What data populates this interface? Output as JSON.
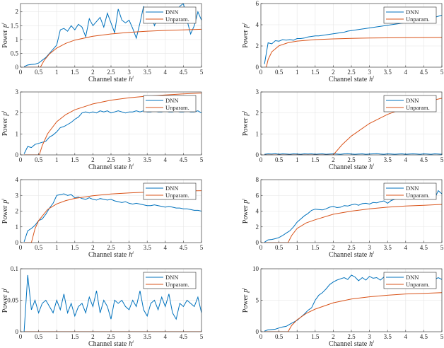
{
  "colors": {
    "dnn": "#0072BD",
    "unparam": "#D95319",
    "grid": "#E6E6E6",
    "axis": "#262626"
  },
  "chart_data": [
    {
      "type": "line",
      "xlabel": "Channel state",
      "xlabel_sup": "i",
      "xlabel_var": "h",
      "ylabel": "Power",
      "ylabel_var": "p",
      "ylabel_sup": "i",
      "xlim": [
        0,
        5
      ],
      "ylim": [
        0,
        2.3
      ],
      "xticks": [
        "0",
        "0.5",
        "1",
        "1.5",
        "2",
        "2.5",
        "3",
        "3.5",
        "4",
        "4.5",
        "5"
      ],
      "yticks": [
        "0",
        "0.5",
        "1",
        "1.5",
        "2"
      ],
      "legend": "top-right",
      "series": [
        {
          "name": "DNN",
          "x_start": 0.1,
          "x_step": 0.1,
          "values": [
            0.02,
            0.08,
            0.1,
            0.11,
            0.15,
            0.25,
            0.35,
            0.5,
            0.65,
            0.8,
            1.35,
            1.4,
            1.3,
            1.5,
            1.35,
            1.55,
            1.45,
            1.1,
            1.75,
            1.5,
            1.65,
            1.8,
            1.45,
            1.95,
            1.6,
            1.25,
            2.1,
            1.7,
            1.6,
            1.7,
            1.4,
            1.05,
            1.6,
            2.2,
            1.7,
            2.0,
            1.5,
            1.8,
            2.1,
            1.6,
            1.9,
            2.0,
            1.6,
            2.2,
            2.3,
            1.7,
            1.2,
            1.5,
            2.0,
            1.7
          ]
        },
        {
          "name": "Unparam.",
          "x": [
            0.1,
            0.55,
            0.65,
            0.8,
            1,
            1.25,
            1.5,
            2,
            2.5,
            3,
            3.5,
            4,
            4.5,
            5
          ],
          "values": [
            0,
            0,
            0.24,
            0.48,
            0.69,
            0.86,
            0.98,
            1.12,
            1.2,
            1.26,
            1.3,
            1.33,
            1.35,
            1.37
          ]
        }
      ]
    },
    {
      "type": "line",
      "xlabel": "Channel state",
      "xlabel_sup": "i",
      "xlabel_var": "h",
      "ylabel": "Power",
      "ylabel_var": "p",
      "ylabel_sup": "i",
      "xlim": [
        0,
        5
      ],
      "ylim": [
        0,
        6
      ],
      "xticks": [
        "0",
        "0.5",
        "1",
        "1.5",
        "2",
        "2.5",
        "3",
        "3.5",
        "4",
        "4.5",
        "5"
      ],
      "yticks": [
        "0",
        "2",
        "4",
        "6"
      ],
      "legend": "top-right",
      "series": [
        {
          "name": "DNN",
          "x_start": 0.1,
          "x_step": 0.1,
          "values": [
            0.3,
            2.3,
            2.2,
            2.5,
            2.45,
            2.6,
            2.55,
            2.6,
            2.55,
            2.7,
            2.7,
            2.75,
            2.85,
            2.9,
            2.95,
            2.95,
            3.0,
            3.05,
            3.1,
            3.15,
            3.2,
            3.25,
            3.3,
            3.4,
            3.45,
            3.5,
            3.55,
            3.6,
            3.65,
            3.7,
            3.75,
            3.8,
            3.85,
            3.9,
            3.95,
            4.0,
            4.05,
            4.1,
            4.15,
            4.2,
            4.25,
            4.3,
            4.35,
            4.45,
            4.5,
            4.55,
            4.65,
            4.7,
            4.8,
            4.9
          ]
        },
        {
          "name": "Unparam.",
          "x": [
            0.1,
            0.15,
            0.2,
            0.3,
            0.5,
            0.75,
            1,
            1.5,
            2,
            2.5,
            3,
            3.5,
            4,
            4.5,
            5
          ],
          "values": [
            0,
            0,
            0.72,
            1.45,
            2.02,
            2.31,
            2.46,
            2.6,
            2.67,
            2.72,
            2.75,
            2.77,
            2.78,
            2.79,
            2.8
          ]
        }
      ]
    },
    {
      "type": "line",
      "xlabel": "Channel state",
      "xlabel_sup": "i",
      "xlabel_var": "h",
      "ylabel": "Power",
      "ylabel_var": "p",
      "ylabel_sup": "i",
      "xlim": [
        0,
        5
      ],
      "ylim": [
        0,
        3
      ],
      "xticks": [
        "0",
        "0.5",
        "1",
        "1.5",
        "2",
        "2.5",
        "3",
        "3.5",
        "4",
        "4.5",
        "5"
      ],
      "yticks": [
        "0",
        "1",
        "2",
        "3"
      ],
      "legend": "top-right",
      "series": [
        {
          "name": "DNN",
          "x_start": 0.1,
          "x_step": 0.1,
          "values": [
            0.05,
            0.4,
            0.35,
            0.5,
            0.55,
            0.6,
            0.65,
            0.85,
            0.95,
            1.1,
            1.3,
            1.35,
            1.45,
            1.55,
            1.7,
            1.8,
            2.0,
            2.05,
            2.0,
            2.05,
            2.0,
            2.1,
            2.05,
            2.1,
            2.0,
            2.05,
            2.1,
            2.05,
            2.0,
            2.05,
            2.05,
            2.1,
            2.05,
            2.1,
            2.05,
            2.05,
            2.1,
            2.05,
            2.05,
            2.1,
            2.05,
            2.05,
            2.1,
            2.05,
            2.05,
            2.1,
            2.05,
            2.05,
            2.1,
            2.0
          ]
        },
        {
          "name": "Unparam.",
          "x": [
            0.1,
            0.52,
            0.6,
            0.75,
            1,
            1.25,
            1.5,
            2,
            2.5,
            3,
            3.5,
            4,
            4.5,
            5
          ],
          "values": [
            0,
            0,
            0.44,
            1.01,
            1.58,
            1.92,
            2.15,
            2.43,
            2.61,
            2.72,
            2.8,
            2.86,
            2.91,
            2.95
          ]
        }
      ]
    },
    {
      "type": "line",
      "xlabel": "Channel state",
      "xlabel_sup": "i",
      "xlabel_var": "h",
      "ylabel": "Power",
      "ylabel_var": "p",
      "ylabel_sup": "i",
      "xlim": [
        0,
        5
      ],
      "ylim": [
        0,
        3
      ],
      "xticks": [
        "0",
        "0.5",
        "1",
        "1.5",
        "2",
        "2.5",
        "3",
        "3.5",
        "4",
        "4.5",
        "5"
      ],
      "yticks": [
        "0",
        "1",
        "2",
        "3"
      ],
      "legend": "top-right",
      "series": [
        {
          "name": "DNN",
          "x_start": 0.1,
          "x_step": 0.1,
          "values": [
            0.03,
            0.05,
            0.04,
            0.06,
            0.03,
            0.05,
            0.04,
            0.03,
            0.05,
            0.04,
            0.03,
            0.05,
            0.04,
            0.05,
            0.03,
            0.04,
            0.05,
            0.03,
            0.04,
            0.05,
            0.04,
            0.03,
            0.05,
            0.06,
            0.04,
            0.03,
            0.04,
            0.05,
            0.03,
            0.04,
            0.05,
            0.06,
            0.04,
            0.03,
            0.05,
            0.04,
            0.03,
            0.04,
            0.05,
            0.03,
            0.04,
            0.05,
            0.04,
            0.03,
            0.05,
            0.04,
            0.03,
            0.05,
            0.04,
            0.03
          ]
        },
        {
          "name": "Unparam.",
          "x": [
            0.1,
            2,
            2.25,
            2.5,
            3,
            3.5,
            4,
            4.5,
            5
          ],
          "values": [
            0,
            0,
            0.5,
            0.9,
            1.5,
            1.93,
            2.25,
            2.5,
            2.7
          ]
        }
      ]
    },
    {
      "type": "line",
      "xlabel": "Channel state",
      "xlabel_sup": "i",
      "xlabel_var": "h",
      "ylabel": "Power",
      "ylabel_var": "p",
      "ylabel_sup": "i",
      "xlim": [
        0,
        5
      ],
      "ylim": [
        0,
        4
      ],
      "xticks": [
        "0",
        "0.5",
        "1",
        "1.5",
        "2",
        "2.5",
        "3",
        "3.5",
        "4",
        "4.5",
        "5"
      ],
      "yticks": [
        "0",
        "1",
        "2",
        "3",
        "4"
      ],
      "legend": "top-right",
      "series": [
        {
          "name": "DNN",
          "x_start": 0.1,
          "x_step": 0.1,
          "values": [
            0.05,
            0.75,
            0.9,
            1.1,
            1.4,
            1.5,
            1.8,
            2.2,
            2.5,
            3.0,
            3.05,
            3.1,
            3.0,
            3.05,
            2.85,
            2.9,
            2.8,
            2.75,
            2.85,
            2.75,
            2.7,
            2.8,
            2.75,
            2.7,
            2.75,
            2.65,
            2.6,
            2.55,
            2.6,
            2.5,
            2.45,
            2.5,
            2.45,
            2.4,
            2.35,
            2.35,
            2.4,
            2.35,
            2.3,
            2.25,
            2.3,
            2.25,
            2.2,
            2.2,
            2.15,
            2.15,
            2.1,
            2.05,
            2.05,
            2.0
          ]
        },
        {
          "name": "Unparam.",
          "x": [
            0.1,
            0.3,
            0.4,
            0.5,
            0.75,
            1,
            1.25,
            1.5,
            2,
            2.5,
            3,
            3.5,
            4,
            4.5,
            5
          ],
          "values": [
            0,
            0,
            0.88,
            1.4,
            2.11,
            2.46,
            2.67,
            2.81,
            2.98,
            3.09,
            3.16,
            3.21,
            3.25,
            3.28,
            3.3
          ]
        }
      ]
    },
    {
      "type": "line",
      "xlabel": "Channel state",
      "xlabel_sup": "i",
      "xlabel_var": "h",
      "ylabel": "Power",
      "ylabel_var": "p",
      "ylabel_sup": "i",
      "xlim": [
        0,
        5
      ],
      "ylim": [
        0,
        8
      ],
      "xticks": [
        "0",
        "0.5",
        "1",
        "1.5",
        "2",
        "2.5",
        "3",
        "3.5",
        "4",
        "4.5",
        "5"
      ],
      "yticks": [
        "0",
        "2",
        "4",
        "6",
        "8"
      ],
      "legend": "top-right",
      "series": [
        {
          "name": "DNN",
          "x_start": 0.1,
          "x_step": 0.1,
          "values": [
            0.05,
            0.35,
            0.4,
            0.5,
            0.65,
            0.9,
            1.2,
            1.5,
            2.0,
            2.6,
            3.0,
            3.4,
            3.7,
            4.1,
            4.25,
            4.2,
            4.15,
            4.3,
            4.5,
            4.6,
            4.45,
            4.5,
            4.7,
            4.65,
            4.8,
            4.9,
            4.75,
            4.95,
            5.0,
            4.9,
            5.1,
            5.05,
            5.2,
            5.3,
            5.0,
            5.35,
            5.5,
            5.6,
            5.5,
            5.7,
            5.8,
            5.6,
            5.9,
            5.75,
            5.9,
            6.0,
            5.7,
            5.6,
            6.6,
            6.2
          ]
        },
        {
          "name": "Unparam.",
          "x": [
            0.1,
            0.75,
            0.85,
            1,
            1.25,
            1.5,
            2,
            2.5,
            3,
            3.5,
            4,
            4.5,
            5
          ],
          "values": [
            0,
            0,
            0.9,
            1.8,
            2.5,
            2.9,
            3.6,
            4.0,
            4.3,
            4.5,
            4.65,
            4.75,
            4.85
          ]
        }
      ]
    },
    {
      "type": "line",
      "xlabel": "Channel state",
      "xlabel_sup": "i",
      "xlabel_var": "h",
      "ylabel": "Power",
      "ylabel_var": "p",
      "ylabel_sup": "i",
      "xlim": [
        0,
        5
      ],
      "ylim": [
        0,
        0.1
      ],
      "xticks": [
        "0",
        "0.5",
        "1",
        "1.5",
        "2",
        "2.5",
        "3",
        "3.5",
        "4",
        "4.5",
        "5"
      ],
      "yticks": [
        "0",
        "0.05",
        "0.1"
      ],
      "legend": "top-right",
      "series": [
        {
          "name": "DNN",
          "x_start": 0.1,
          "x_step": 0.1,
          "values": [
            0,
            0.09,
            0.035,
            0.05,
            0.03,
            0.045,
            0.05,
            0.04,
            0.03,
            0.05,
            0.035,
            0.06,
            0.03,
            0.045,
            0.025,
            0.04,
            0.045,
            0.03,
            0.055,
            0.04,
            0.065,
            0.03,
            0.05,
            0.04,
            0.02,
            0.05,
            0.045,
            0.05,
            0.04,
            0.035,
            0.05,
            0.04,
            0.065,
            0.035,
            0.025,
            0.045,
            0.05,
            0.035,
            0.055,
            0.04,
            0.06,
            0.03,
            0.02,
            0.045,
            0.04,
            0.05,
            0.045,
            0.04,
            0.055,
            0.03
          ]
        },
        {
          "name": "Unparam.",
          "x": [
            0.1,
            5
          ],
          "values": [
            0,
            0
          ]
        }
      ]
    },
    {
      "type": "line",
      "xlabel": "Channel state",
      "xlabel_sup": "i",
      "xlabel_var": "h",
      "ylabel": "Power",
      "ylabel_var": "p",
      "ylabel_sup": "i",
      "xlim": [
        0,
        5
      ],
      "ylim": [
        0,
        10
      ],
      "xticks": [
        "0",
        "0.5",
        "1",
        "1.5",
        "2",
        "2.5",
        "3",
        "3.5",
        "4",
        "4.5",
        "5"
      ],
      "yticks": [
        "0",
        "5",
        "10"
      ],
      "legend": "top-right",
      "series": [
        {
          "name": "DNN",
          "x_start": 0.1,
          "x_step": 0.1,
          "values": [
            0.1,
            0.3,
            0.35,
            0.4,
            0.6,
            0.75,
            0.85,
            1.2,
            1.5,
            1.8,
            2.3,
            2.8,
            3.4,
            3.8,
            5.0,
            5.8,
            6.2,
            6.8,
            7.5,
            7.9,
            8.2,
            8.4,
            8.6,
            8.3,
            9.0,
            8.7,
            8.1,
            8.6,
            8.2,
            8.8,
            8.5,
            8.6,
            8.2,
            8.7,
            8.4,
            8.6,
            8.3,
            8.5,
            8.2,
            8.6,
            8.3,
            8.5,
            8.1,
            8.4,
            8.6,
            8.2,
            8.5,
            8.3,
            8.6,
            8.3
          ]
        },
        {
          "name": "Unparam.",
          "x": [
            0.1,
            0.75,
            0.85,
            1,
            1.25,
            1.5,
            2,
            2.5,
            3,
            3.5,
            4,
            4.5,
            5
          ],
          "values": [
            0,
            0,
            1.0,
            1.9,
            2.9,
            3.6,
            4.6,
            5.2,
            5.55,
            5.8,
            6.0,
            6.1,
            6.2
          ]
        }
      ]
    }
  ]
}
